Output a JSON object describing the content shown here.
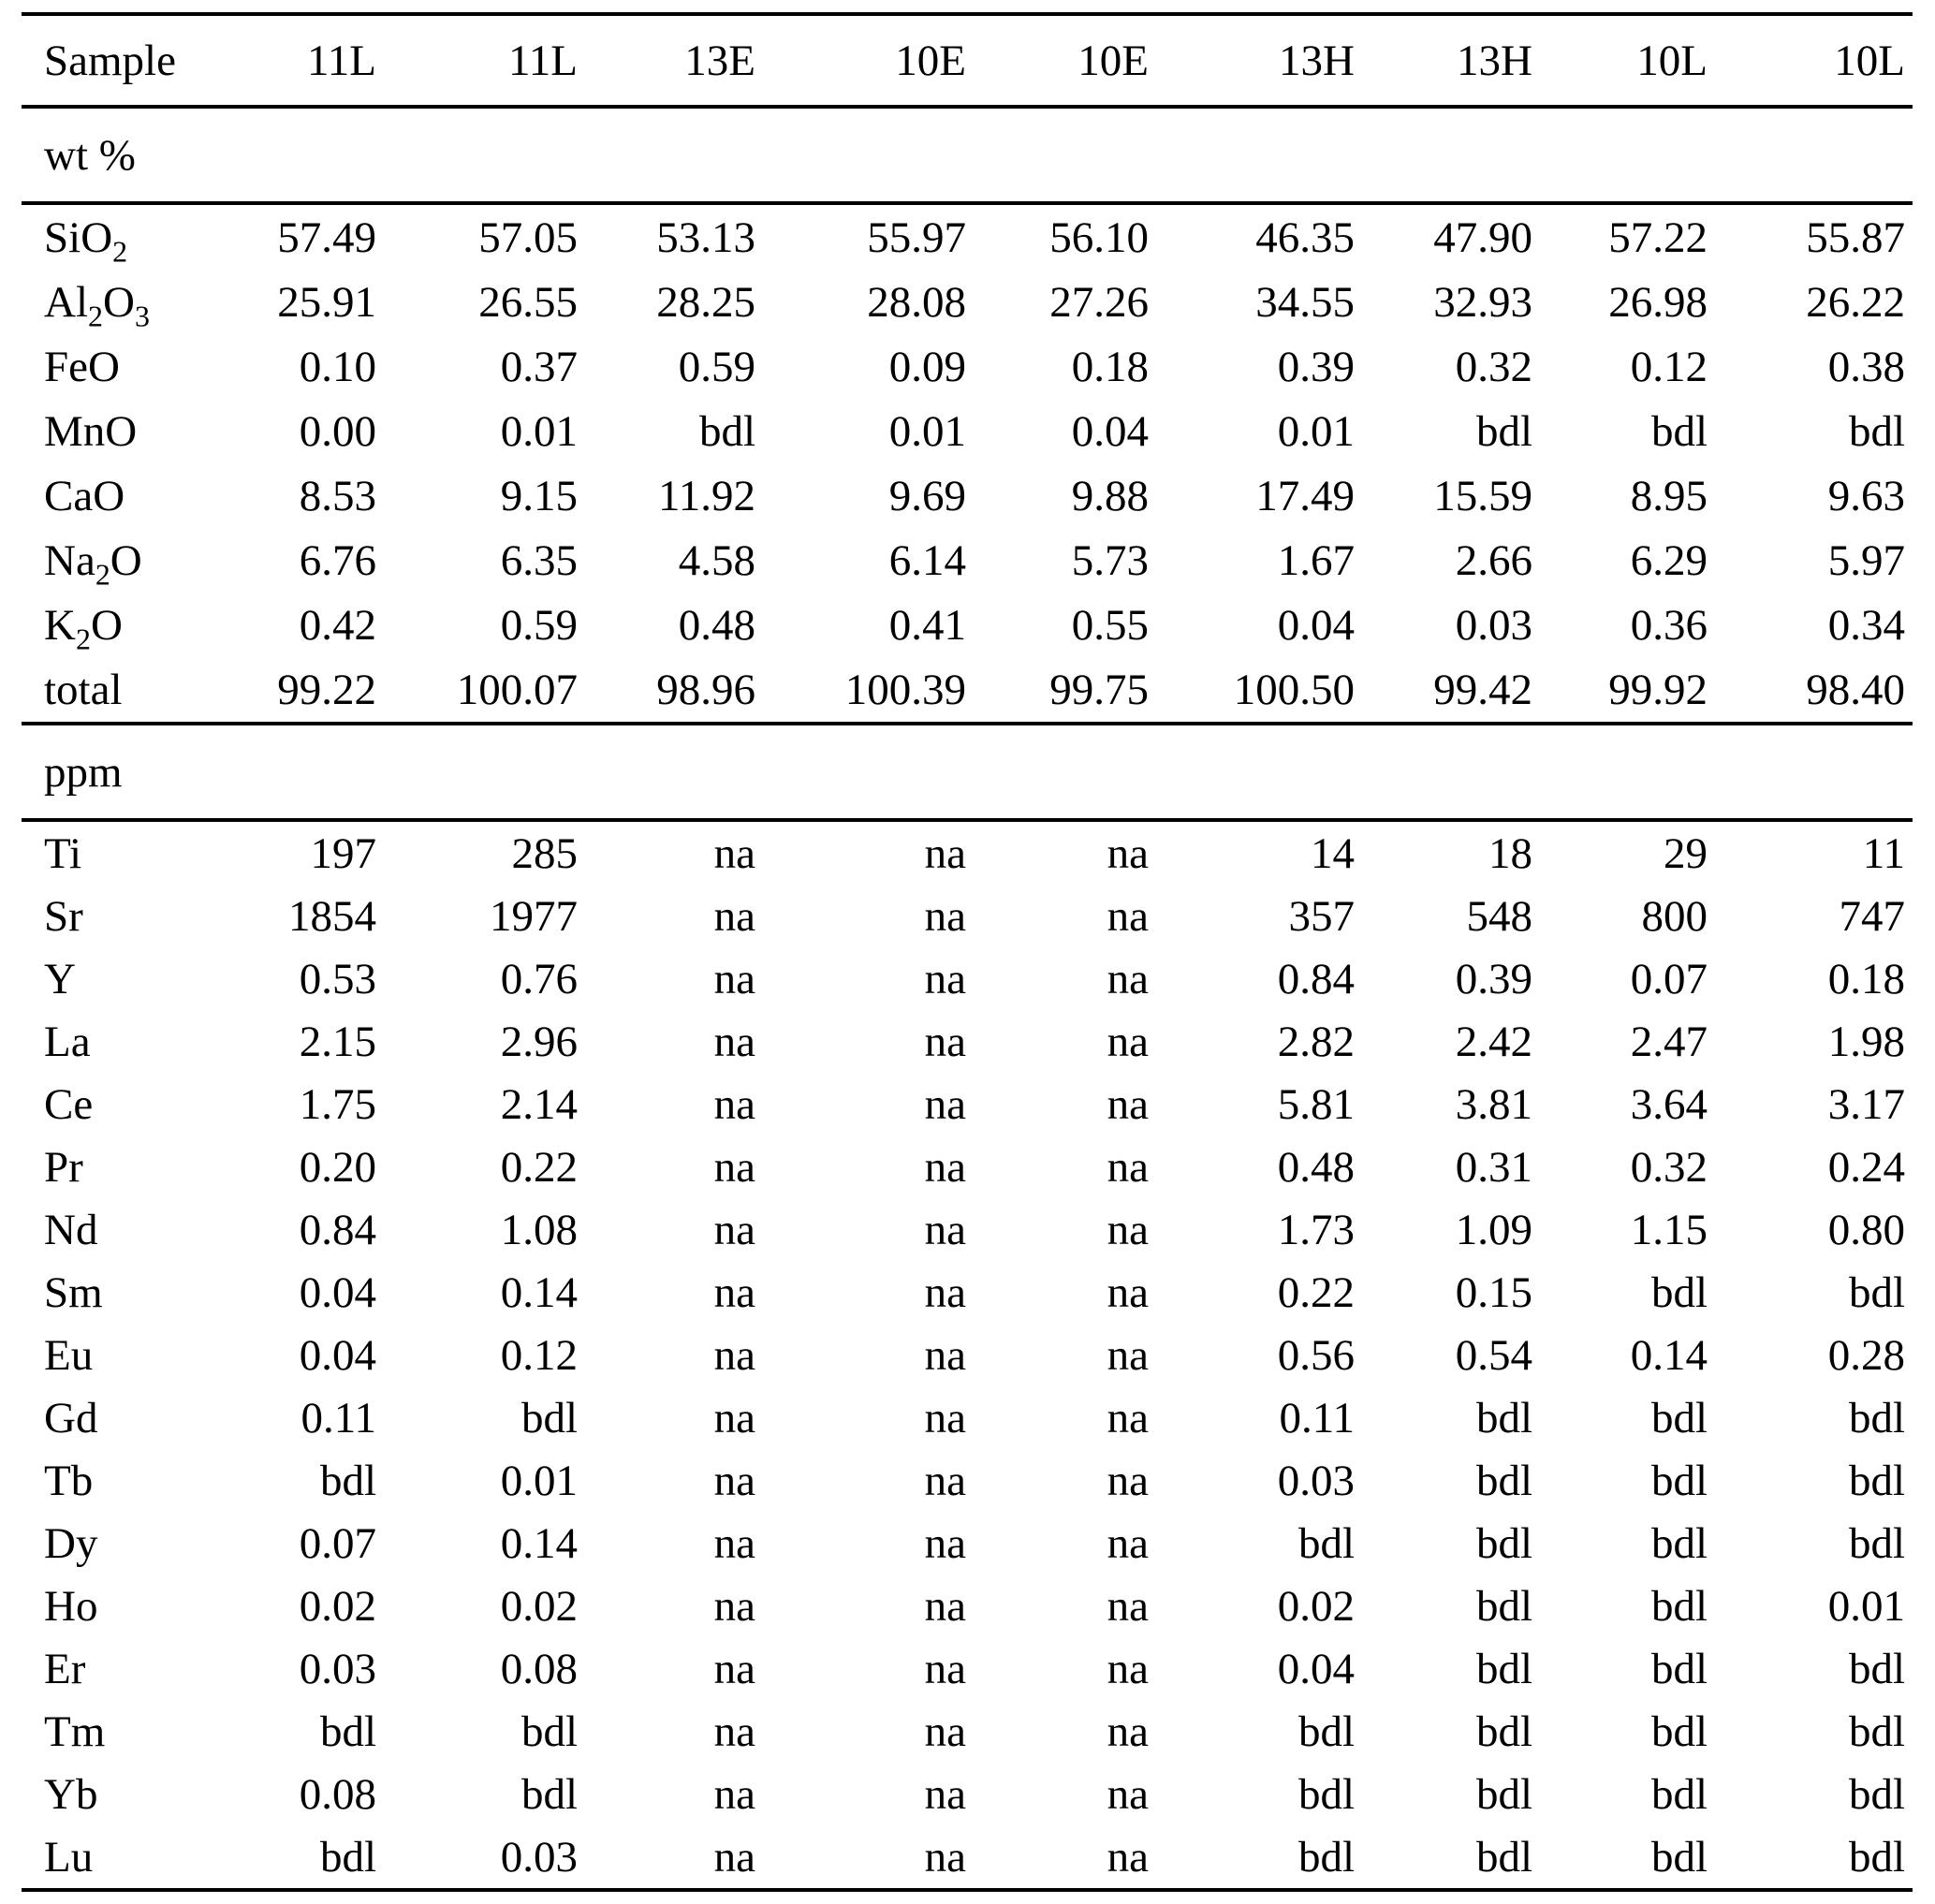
{
  "table": {
    "header": {
      "label": "Sample",
      "columns": [
        "11L",
        "11L",
        "13E",
        "10E",
        "10E",
        "13H",
        "13H",
        "10L",
        "10L"
      ]
    },
    "sections": [
      {
        "label": "wt %",
        "rows": [
          {
            "label": "SiO_2",
            "values": [
              "57.49",
              "57.05",
              "53.13",
              "55.97",
              "56.10",
              "46.35",
              "47.90",
              "57.22",
              "55.87"
            ]
          },
          {
            "label": "Al_2O_3",
            "values": [
              "25.91",
              "26.55",
              "28.25",
              "28.08",
              "27.26",
              "34.55",
              "32.93",
              "26.98",
              "26.22"
            ]
          },
          {
            "label": "FeO",
            "values": [
              "0.10",
              "0.37",
              "0.59",
              "0.09",
              "0.18",
              "0.39",
              "0.32",
              "0.12",
              "0.38"
            ]
          },
          {
            "label": "MnO",
            "values": [
              "0.00",
              "0.01",
              "bdl",
              "0.01",
              "0.04",
              "0.01",
              "bdl",
              "bdl",
              "bdl"
            ]
          },
          {
            "label": "CaO",
            "values": [
              "8.53",
              "9.15",
              "11.92",
              "9.69",
              "9.88",
              "17.49",
              "15.59",
              "8.95",
              "9.63"
            ]
          },
          {
            "label": "Na_2O",
            "values": [
              "6.76",
              "6.35",
              "4.58",
              "6.14",
              "5.73",
              "1.67",
              "2.66",
              "6.29",
              "5.97"
            ]
          },
          {
            "label": "K_2O",
            "values": [
              "0.42",
              "0.59",
              "0.48",
              "0.41",
              "0.55",
              "0.04",
              "0.03",
              "0.36",
              "0.34"
            ]
          },
          {
            "label": "total",
            "values": [
              "99.22",
              "100.07",
              "98.96",
              "100.39",
              "99.75",
              "100.50",
              "99.42",
              "99.92",
              "98.40"
            ]
          }
        ]
      },
      {
        "label": "ppm",
        "rows": [
          {
            "label": "Ti",
            "values": [
              "197",
              "285",
              "na",
              "na",
              "na",
              "14",
              "18",
              "29",
              "11"
            ]
          },
          {
            "label": "Sr",
            "values": [
              "1854",
              "1977",
              "na",
              "na",
              "na",
              "357",
              "548",
              "800",
              "747"
            ]
          },
          {
            "label": "Y",
            "values": [
              "0.53",
              "0.76",
              "na",
              "na",
              "na",
              "0.84",
              "0.39",
              "0.07",
              "0.18"
            ]
          },
          {
            "label": "La",
            "values": [
              "2.15",
              "2.96",
              "na",
              "na",
              "na",
              "2.82",
              "2.42",
              "2.47",
              "1.98"
            ]
          },
          {
            "label": "Ce",
            "values": [
              "1.75",
              "2.14",
              "na",
              "na",
              "na",
              "5.81",
              "3.81",
              "3.64",
              "3.17"
            ]
          },
          {
            "label": "Pr",
            "values": [
              "0.20",
              "0.22",
              "na",
              "na",
              "na",
              "0.48",
              "0.31",
              "0.32",
              "0.24"
            ]
          },
          {
            "label": "Nd",
            "values": [
              "0.84",
              "1.08",
              "na",
              "na",
              "na",
              "1.73",
              "1.09",
              "1.15",
              "0.80"
            ]
          },
          {
            "label": "Sm",
            "values": [
              "0.04",
              "0.14",
              "na",
              "na",
              "na",
              "0.22",
              "0.15",
              "bdl",
              "bdl"
            ]
          },
          {
            "label": "Eu",
            "values": [
              "0.04",
              "0.12",
              "na",
              "na",
              "na",
              "0.56",
              "0.54",
              "0.14",
              "0.28"
            ]
          },
          {
            "label": "Gd",
            "values": [
              "0.11",
              "bdl",
              "na",
              "na",
              "na",
              "0.11",
              "bdl",
              "bdl",
              "bdl"
            ]
          },
          {
            "label": "Tb",
            "values": [
              "bdl",
              "0.01",
              "na",
              "na",
              "na",
              "0.03",
              "bdl",
              "bdl",
              "bdl"
            ]
          },
          {
            "label": "Dy",
            "values": [
              "0.07",
              "0.14",
              "na",
              "na",
              "na",
              "bdl",
              "bdl",
              "bdl",
              "bdl"
            ]
          },
          {
            "label": "Ho",
            "values": [
              "0.02",
              "0.02",
              "na",
              "na",
              "na",
              "0.02",
              "bdl",
              "bdl",
              "0.01"
            ]
          },
          {
            "label": "Er",
            "values": [
              "0.03",
              "0.08",
              "na",
              "na",
              "na",
              "0.04",
              "bdl",
              "bdl",
              "bdl"
            ]
          },
          {
            "label": "Tm",
            "values": [
              "bdl",
              "bdl",
              "na",
              "na",
              "na",
              "bdl",
              "bdl",
              "bdl",
              "bdl"
            ]
          },
          {
            "label": "Yb",
            "values": [
              "0.08",
              "bdl",
              "na",
              "na",
              "na",
              "bdl",
              "bdl",
              "bdl",
              "bdl"
            ]
          },
          {
            "label": "Lu",
            "values": [
              "bdl",
              "0.03",
              "na",
              "na",
              "na",
              "bdl",
              "bdl",
              "bdl",
              "bdl"
            ]
          }
        ]
      }
    ]
  }
}
